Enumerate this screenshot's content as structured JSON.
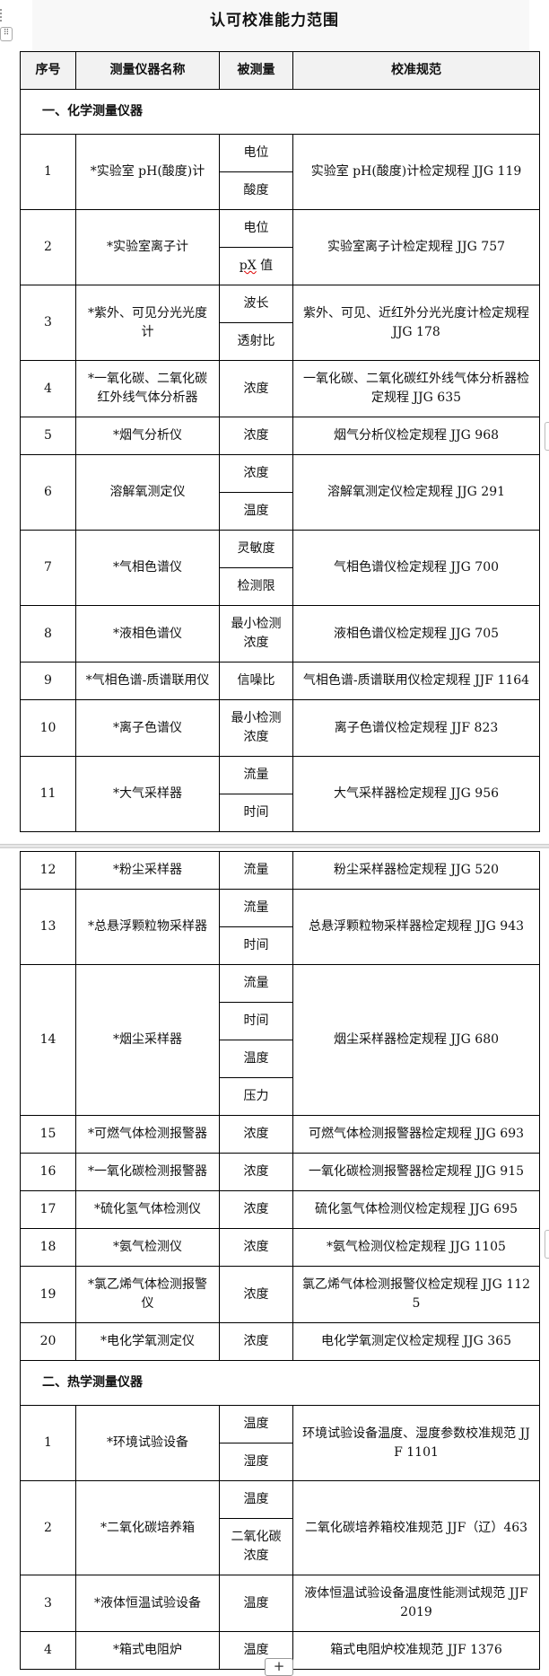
{
  "document": {
    "title": "认可校准能力范围",
    "add_row_label": "+",
    "drag_handle_label": "⠿"
  },
  "table": {
    "headers": [
      "序号",
      "测量仪器名称",
      "被测量",
      "校准规范"
    ],
    "sections": [
      {
        "title": "一、化学测量仪器",
        "items": [
          {
            "no": "1",
            "name": "*实验室 pH(酸度)计",
            "quantities": [
              "电位",
              "酸度"
            ],
            "spec": "实验室 pH(酸度)计检定规程 JJG 119"
          },
          {
            "no": "2",
            "name": "*实验室离子计",
            "quantities": [
              "电位",
              "pX 值"
            ],
            "spec": "实验室离子计检定规程 JJG 757"
          },
          {
            "no": "3",
            "name": "*紫外、可见分光光度计",
            "quantities": [
              "波长",
              "透射比"
            ],
            "spec": "紫外、可见、近红外分光光度计检定规程 JJG 178"
          },
          {
            "no": "4",
            "name": "*一氧化碳、二氧化碳红外线气体分析器",
            "quantities": [
              "浓度"
            ],
            "spec": "一氧化碳、二氧化碳红外线气体分析器检定规程 JJG 635"
          },
          {
            "no": "5",
            "name": "*烟气分析仪",
            "quantities": [
              "浓度"
            ],
            "spec": "烟气分析仪检定规程 JJG 968"
          },
          {
            "no": "6",
            "name": "溶解氧测定仪",
            "quantities": [
              "浓度",
              "温度"
            ],
            "spec": "溶解氧测定仪检定规程 JJG 291"
          },
          {
            "no": "7",
            "name": "*气相色谱仪",
            "quantities": [
              "灵敏度",
              "检测限"
            ],
            "spec": "气相色谱仪检定规程 JJG 700"
          },
          {
            "no": "8",
            "name": "*液相色谱仪",
            "quantities": [
              "最小检测浓度"
            ],
            "spec": "液相色谱仪检定规程 JJG 705"
          },
          {
            "no": "9",
            "name": "*气相色谱-质谱联用仪",
            "quantities": [
              "信噪比"
            ],
            "spec": "气相色谱-质谱联用仪检定规程 JJF 1164"
          },
          {
            "no": "10",
            "name": "*离子色谱仪",
            "quantities": [
              "最小检测浓度"
            ],
            "spec": "离子色谱仪检定规程 JJF 823"
          },
          {
            "no": "11",
            "name": "*大气采样器",
            "quantities": [
              "流量",
              "时间"
            ],
            "spec": "大气采样器检定规程 JJG 956"
          },
          {
            "no": "12",
            "name": "*粉尘采样器",
            "quantities": [
              "流量"
            ],
            "spec": "粉尘采样器检定规程 JJG 520"
          },
          {
            "no": "13",
            "name": "*总悬浮颗粒物采样器",
            "quantities": [
              "流量",
              "时间"
            ],
            "spec": "总悬浮颗粒物采样器检定规程 JJG 943"
          },
          {
            "no": "14",
            "name": "*烟尘采样器",
            "quantities": [
              "流量",
              "时间",
              "温度",
              "压力"
            ],
            "spec": "烟尘采样器检定规程 JJG 680"
          },
          {
            "no": "15",
            "name": "*可燃气体检测报警器",
            "quantities": [
              "浓度"
            ],
            "spec": "可燃气体检测报警器检定规程 JJG 693"
          },
          {
            "no": "16",
            "name": "*一氧化碳检测报警器",
            "quantities": [
              "浓度"
            ],
            "spec": "一氧化碳检测报警器检定规程 JJG 915"
          },
          {
            "no": "17",
            "name": "*硫化氢气体检测仪",
            "quantities": [
              "浓度"
            ],
            "spec": "硫化氢气体检测仪检定规程 JJG 695"
          },
          {
            "no": "18",
            "name": "*氨气检测仪",
            "quantities": [
              "浓度"
            ],
            "spec": "*氨气检测仪检定规程 JJG 1105"
          },
          {
            "no": "19",
            "name": "*氯乙烯气体检测报警仪",
            "quantities": [
              "浓度"
            ],
            "spec": "氯乙烯气体检测报警仪检定规程 JJG 1125"
          },
          {
            "no": "20",
            "name": "*电化学氧测定仪",
            "quantities": [
              "浓度"
            ],
            "spec": "电化学氧测定仪检定规程 JJG 365"
          }
        ]
      },
      {
        "title": "二、热学测量仪器",
        "items": [
          {
            "no": "1",
            "name": "*环境试验设备",
            "quantities": [
              "温度",
              "湿度"
            ],
            "spec": "环境试验设备温度、湿度参数校准规范 JJF 1101"
          },
          {
            "no": "2",
            "name": "*二氧化碳培养箱",
            "quantities": [
              "温度",
              "二氧化碳浓度"
            ],
            "spec": "二氧化碳培养箱校准规范 JJF（辽）463"
          },
          {
            "no": "3",
            "name": "*液体恒温试验设备",
            "quantities": [
              "温度"
            ],
            "spec": "液体恒温试验设备温度性能测试规范 JJF 2019"
          },
          {
            "no": "4",
            "name": "*箱式电阻炉",
            "quantities": [
              "温度"
            ],
            "spec": "箱式电阻炉校准规范 JJF 1376"
          }
        ]
      }
    ]
  }
}
